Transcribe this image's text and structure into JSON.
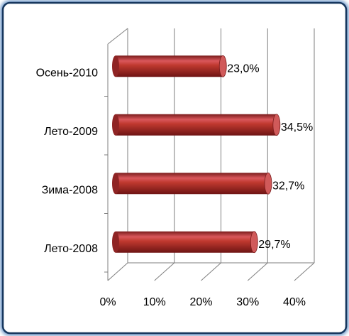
{
  "chart_data": {
    "type": "bar",
    "orientation": "horizontal",
    "categories": [
      "Осень-2010",
      "Лето-2009",
      "Зима-2008",
      "Лето-2008"
    ],
    "values": [
      23.0,
      34.5,
      32.7,
      29.7
    ],
    "value_labels": [
      "23,0%",
      "34,5%",
      "32,7%",
      "29,7%"
    ],
    "color": "#c0392f",
    "xlim": [
      0,
      40
    ],
    "xticks": [
      {
        "value": 0,
        "label": "0%"
      },
      {
        "value": 10,
        "label": "10%"
      },
      {
        "value": 20,
        "label": "20%"
      },
      {
        "value": 30,
        "label": "30%"
      },
      {
        "value": 40,
        "label": "40%"
      }
    ],
    "grid": true
  }
}
